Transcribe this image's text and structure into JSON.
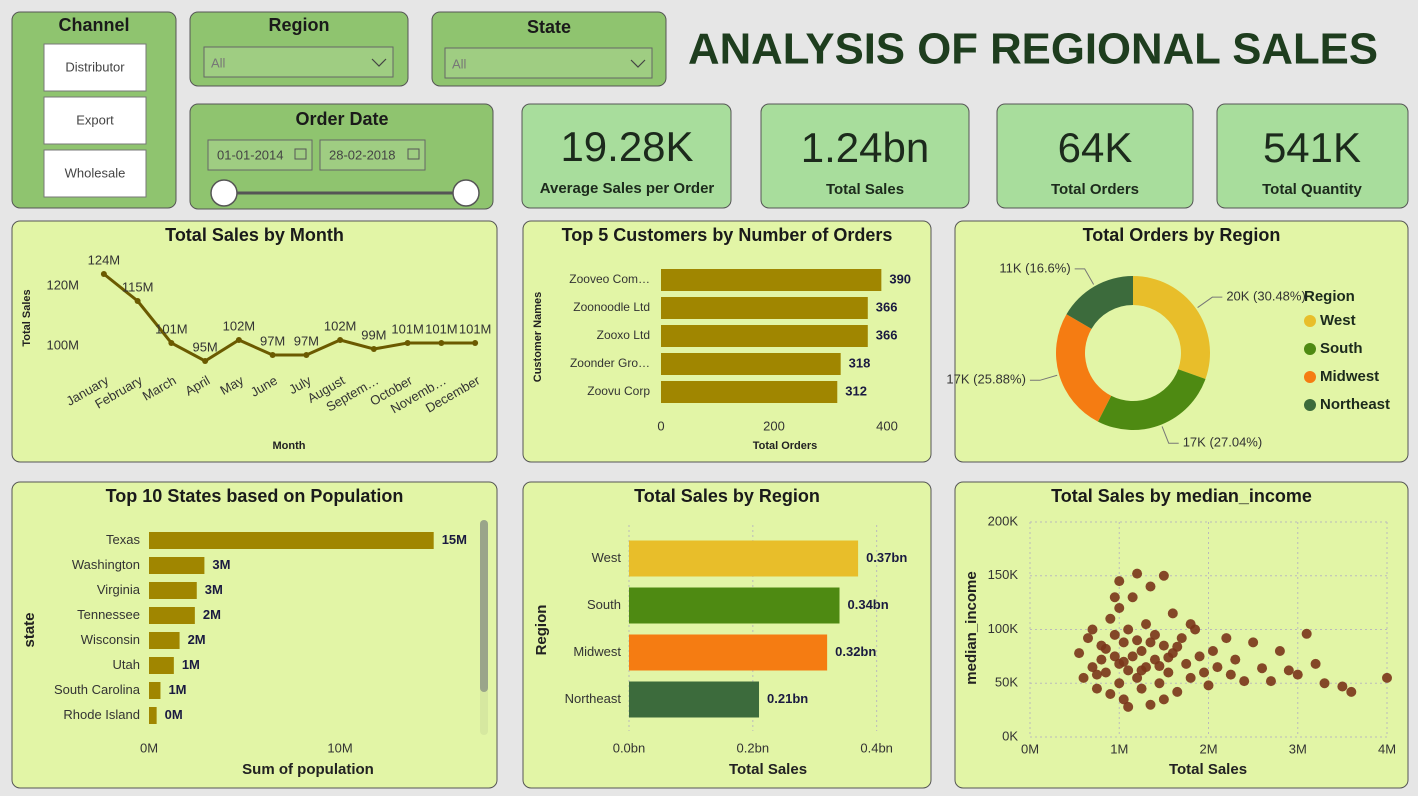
{
  "header": {
    "title": "ANALYSIS OF REGIONAL SALES"
  },
  "filters": {
    "channel": {
      "title": "Channel",
      "options": [
        "Distributor",
        "Export",
        "Wholesale"
      ]
    },
    "region": {
      "title": "Region",
      "value": "All"
    },
    "state": {
      "title": "State",
      "value": "All"
    },
    "order_date": {
      "title": "Order Date",
      "start": "01-01-2014",
      "end": "28-02-2018"
    }
  },
  "kpis": [
    {
      "value": "19.28K",
      "label": "Average Sales per Order"
    },
    {
      "value": "1.24bn",
      "label": "Total Sales"
    },
    {
      "value": "64K",
      "label": "Total Orders"
    },
    {
      "value": "541K",
      "label": "Total Quantity"
    }
  ],
  "chart_data": [
    {
      "type": "line",
      "title": "Total Sales by Month",
      "x_label": "Month",
      "y_label": "Total Sales",
      "categories": [
        "January",
        "February",
        "March",
        "April",
        "May",
        "June",
        "July",
        "August",
        "Septem…",
        "October",
        "Novemb…",
        "December"
      ],
      "values": [
        124,
        115,
        101,
        95,
        102,
        97,
        97,
        102,
        99,
        101,
        101,
        101
      ],
      "value_labels": [
        "124M",
        "115M",
        "101M",
        "95M",
        "102M",
        "97M",
        "97M",
        "102M",
        "99M",
        "101M",
        "101M",
        "101M"
      ],
      "color": "#6b5a00",
      "ylim": [
        92,
        128
      ],
      "yticks": [
        {
          "value": 100,
          "label": "100M"
        },
        {
          "value": 120,
          "label": "120M"
        }
      ],
      "grid": false
    },
    {
      "type": "bar",
      "orientation": "horizontal",
      "title": "Top 5 Customers by Number of Orders",
      "x_label": "Total Orders",
      "y_label": "Customer Names",
      "categories": [
        "Zooveo Com…",
        "Zoonoodle Ltd",
        "Zooxo Ltd",
        "Zoonder Gro…",
        "Zoovu Corp"
      ],
      "values": [
        390,
        366,
        366,
        318,
        312
      ],
      "color": "#a08600",
      "xlim": [
        0,
        400
      ],
      "xticks": [
        0,
        200,
        400
      ],
      "grid": false
    },
    {
      "type": "pie",
      "donut": true,
      "title": "Total Orders by Region",
      "legend_title": "Region",
      "legend": "right",
      "categories": [
        "West",
        "South",
        "Midwest",
        "Northeast"
      ],
      "values": [
        30.48,
        27.04,
        25.88,
        16.6
      ],
      "value_labels": [
        "20K (30.48%)",
        "17K (27.04%)",
        "17K (25.88%)",
        "11K (16.6%)"
      ],
      "colors": [
        "#e8be2a",
        "#4e8a12",
        "#f57c12",
        "#3c6b3c"
      ]
    },
    {
      "type": "bar",
      "orientation": "horizontal",
      "title": "Top 10 States based on Population",
      "x_label": "Sum of population",
      "y_label": "state",
      "categories": [
        "Texas",
        "Washington",
        "Virginia",
        "Tennessee",
        "Wisconsin",
        "Utah",
        "South Carolina",
        "Rhode Island"
      ],
      "values": [
        14.9,
        2.9,
        2.5,
        2.4,
        1.6,
        1.3,
        0.6,
        0.4
      ],
      "value_labels": [
        "15M",
        "3M",
        "3M",
        "2M",
        "2M",
        "1M",
        "1M",
        "0M"
      ],
      "color": "#a08600",
      "xlim": [
        0,
        16.8
      ],
      "xticks": [
        {
          "value": 0,
          "label": "0M"
        },
        {
          "value": 10,
          "label": "10M"
        }
      ],
      "grid": false
    },
    {
      "type": "bar",
      "orientation": "horizontal",
      "title": "Total Sales by Region",
      "x_label": "Total Sales",
      "y_label": "Region",
      "categories": [
        "West",
        "South",
        "Midwest",
        "Northeast"
      ],
      "values": [
        0.37,
        0.34,
        0.32,
        0.21
      ],
      "value_labels": [
        "0.37bn",
        "0.34bn",
        "0.32bn",
        "0.21bn"
      ],
      "colors": [
        "#e8be2a",
        "#4e8a12",
        "#f57c12",
        "#3c6b3c"
      ],
      "xlim": [
        0,
        0.47
      ],
      "xticks": [
        {
          "value": 0,
          "label": "0.0bn"
        },
        {
          "value": 0.2,
          "label": "0.2bn"
        },
        {
          "value": 0.4,
          "label": "0.4bn"
        }
      ],
      "grid": true
    },
    {
      "type": "scatter",
      "title": "Total Sales by median_income",
      "x_label": "Total Sales",
      "y_label": "median_income",
      "color": "#7a3519",
      "x": [
        0.55,
        0.6,
        0.65,
        0.7,
        0.7,
        0.75,
        0.8,
        0.8,
        0.85,
        0.9,
        0.9,
        0.95,
        0.95,
        1.0,
        1.0,
        1.0,
        1.05,
        1.05,
        1.1,
        1.1,
        1.15,
        1.15,
        1.2,
        1.2,
        1.25,
        1.25,
        1.3,
        1.3,
        1.35,
        1.35,
        1.4,
        1.4,
        1.45,
        1.5,
        1.5,
        1.55,
        1.6,
        1.6,
        1.65,
        1.7,
        1.75,
        1.8,
        1.85,
        1.9,
        1.95,
        2.0,
        2.05,
        2.1,
        2.2,
        2.25,
        2.3,
        2.4,
        2.5,
        2.6,
        2.7,
        2.8,
        2.9,
        3.0,
        3.1,
        3.2,
        3.3,
        3.5,
        3.6,
        4.0,
        1.0,
        1.2,
        0.95,
        1.8,
        1.1,
        1.5,
        0.85,
        1.05,
        1.25,
        1.45,
        1.65,
        0.75,
        1.35,
        1.55
      ],
      "values": [
        78,
        55,
        92,
        65,
        100,
        45,
        72,
        85,
        60,
        110,
        40,
        75,
        95,
        50,
        68,
        120,
        88,
        35,
        62,
        100,
        75,
        130,
        55,
        90,
        45,
        80,
        105,
        65,
        140,
        30,
        72,
        95,
        50,
        85,
        150,
        60,
        78,
        115,
        42,
        92,
        68,
        55,
        100,
        75,
        60,
        48,
        80,
        65,
        92,
        58,
        72,
        52,
        88,
        64,
        52,
        80,
        62,
        58,
        96,
        68,
        50,
        47,
        42,
        55,
        145,
        152,
        130,
        105,
        28,
        35,
        82,
        70,
        62,
        66,
        84,
        58,
        88,
        74
      ],
      "xlim": [
        0,
        4
      ],
      "xticks": [
        {
          "value": 0,
          "label": "0M"
        },
        {
          "value": 1,
          "label": "1M"
        },
        {
          "value": 2,
          "label": "2M"
        },
        {
          "value": 3,
          "label": "3M"
        },
        {
          "value": 4,
          "label": "4M"
        }
      ],
      "ylim": [
        0,
        200
      ],
      "yticks": [
        {
          "value": 0,
          "label": "0K"
        },
        {
          "value": 50,
          "label": "50K"
        },
        {
          "value": 100,
          "label": "100K"
        },
        {
          "value": 150,
          "label": "150K"
        },
        {
          "value": 200,
          "label": "200K"
        }
      ],
      "grid": true
    }
  ]
}
